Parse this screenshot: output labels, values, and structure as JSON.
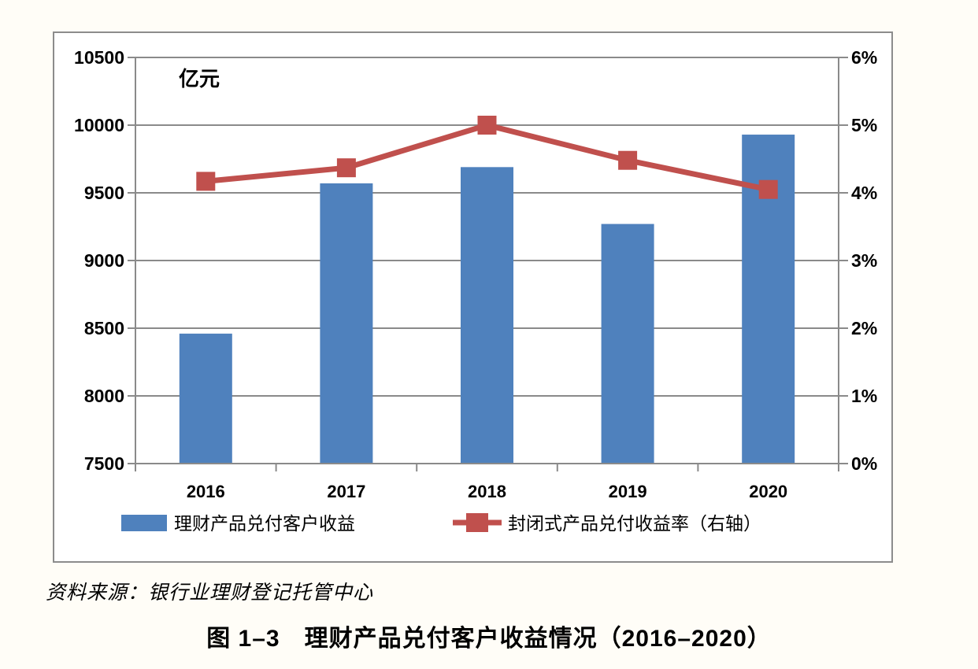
{
  "page": {
    "source": "资料来源：银行业理财登记托管中心",
    "caption": "图 1–3　理财产品兑付客户收益情况（2016–2020）"
  },
  "chart_data": {
    "type": "combo-bar-line",
    "title": "",
    "categories": [
      "2016",
      "2017",
      "2018",
      "2019",
      "2020"
    ],
    "series": [
      {
        "name": "理财产品兑付客户收益",
        "type": "bar",
        "axis": "left",
        "color": "#4F81BD",
        "values": [
          8460,
          9570,
          9690,
          9270,
          9930
        ]
      },
      {
        "name": "封闭式产品兑付收益率（右轴）",
        "type": "line",
        "axis": "right",
        "color": "#C0504D",
        "marker": "square",
        "values": [
          4.17,
          4.37,
          5.0,
          4.48,
          4.05
        ]
      }
    ],
    "left_axis": {
      "label": "亿元",
      "min": 7500,
      "max": 10500,
      "step": 500
    },
    "right_axis": {
      "min": 0,
      "max": 6,
      "step": 1,
      "suffix": "%"
    },
    "grid": true,
    "legend_position": "bottom"
  },
  "colors": {
    "bar_blue": "#4F81BD",
    "line_red": "#C0504D",
    "grid_gray": "#8A8A8A",
    "page_background": "#FFFDF7",
    "chart_background": "#FFFFFF"
  }
}
